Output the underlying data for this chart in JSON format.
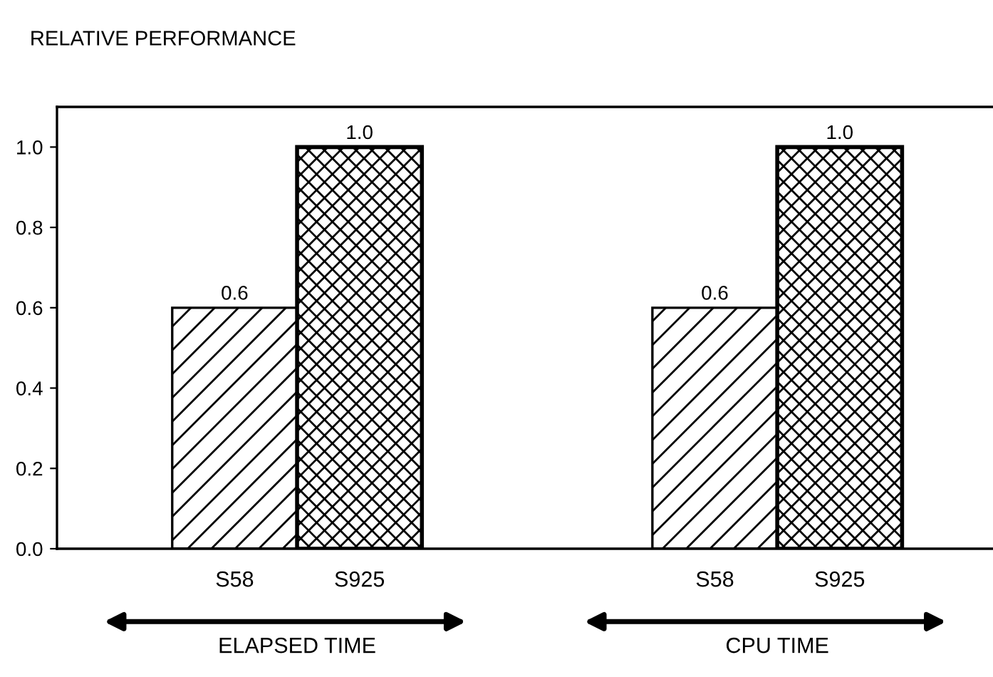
{
  "chart_data": {
    "type": "bar",
    "ylabel": "RELATIVE PERFORMANCE",
    "categories": [
      "ELAPSED TIME",
      "CPU TIME"
    ],
    "series": [
      {
        "name": "S58",
        "color": "#000000",
        "values": [
          0.6,
          0.6
        ],
        "value_labels": [
          "0.6",
          "0.6"
        ]
      },
      {
        "name": "S925",
        "color": "#000000",
        "values": [
          1.0,
          1.0
        ],
        "value_labels": [
          "1.0",
          "1.0"
        ]
      }
    ],
    "ylim": [
      0,
      1.1
    ],
    "yticks": [
      {
        "value": 0,
        "label": "0.0"
      },
      {
        "value": 0.2,
        "label": "0.2"
      },
      {
        "value": 0.4,
        "label": "0.4"
      },
      {
        "value": 0.6,
        "label": "0.6"
      },
      {
        "value": 0.8,
        "label": "0.8"
      },
      {
        "value": 1.0,
        "label": "1.0"
      }
    ],
    "grid": false,
    "legend": false
  }
}
